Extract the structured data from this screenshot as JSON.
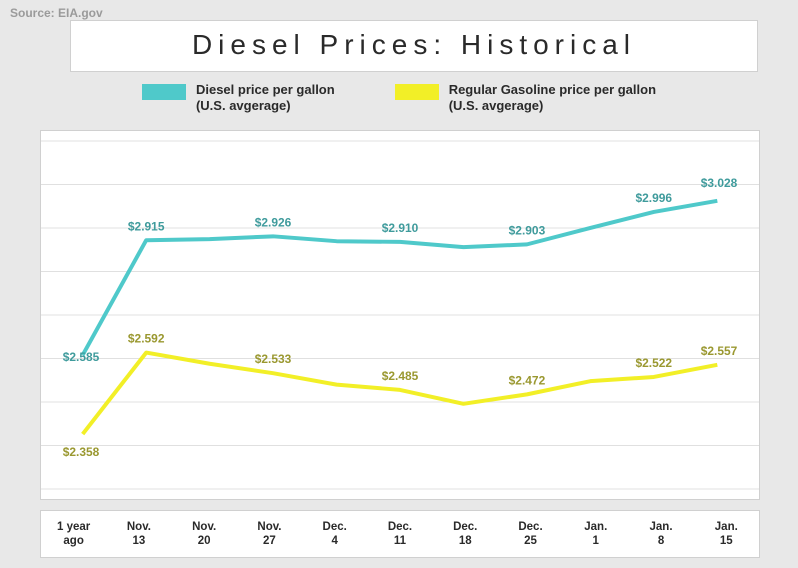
{
  "source_label": "Source: EIA.gov",
  "title": "Diesel Prices: Historical",
  "chart": {
    "type": "line",
    "background_color": "#ffffff",
    "page_background": "#e8e8e8",
    "grid_color": "#e0e0e0",
    "border_color": "#d0d0d0",
    "title_fontsize": 28,
    "title_letterspacing": 6,
    "label_fontsize": 12,
    "line_width": 4,
    "x_labels": [
      "1 year\nago",
      "Nov.\n13",
      "Nov.\n20",
      "Nov.\n27",
      "Dec.\n4",
      "Dec.\n11",
      "Dec.\n18",
      "Dec.\n25",
      "Jan.\n1",
      "Jan.\n8",
      "Jan.\n15"
    ],
    "ylim": [
      2.2,
      3.2
    ],
    "ygrid_count": 8,
    "series": [
      {
        "name": "Diesel price per gallon\n(U.S. avgerage)",
        "color": "#4fc9ca",
        "label_color": "#3f9b9c",
        "values": [
          2.585,
          2.915,
          2.918,
          2.926,
          2.912,
          2.91,
          2.895,
          2.903,
          2.95,
          2.996,
          3.028
        ],
        "show_label": [
          true,
          true,
          false,
          true,
          false,
          true,
          false,
          true,
          false,
          true,
          true
        ],
        "label_dy": [
          6,
          -10,
          -10,
          -10,
          -10,
          -10,
          -10,
          -10,
          -10,
          -10,
          -14
        ]
      },
      {
        "name": "Regular Gasoline price per gallon\n(U.S. avgerage)",
        "color": "#f2ef27",
        "label_color": "#9a9830",
        "values": [
          2.358,
          2.592,
          2.56,
          2.533,
          2.5,
          2.485,
          2.445,
          2.472,
          2.51,
          2.522,
          2.557
        ],
        "show_label": [
          true,
          true,
          false,
          true,
          false,
          true,
          false,
          true,
          false,
          true,
          true
        ],
        "label_dy": [
          22,
          -10,
          -10,
          -10,
          -10,
          -10,
          -10,
          -10,
          -10,
          -10,
          -10
        ]
      }
    ]
  }
}
